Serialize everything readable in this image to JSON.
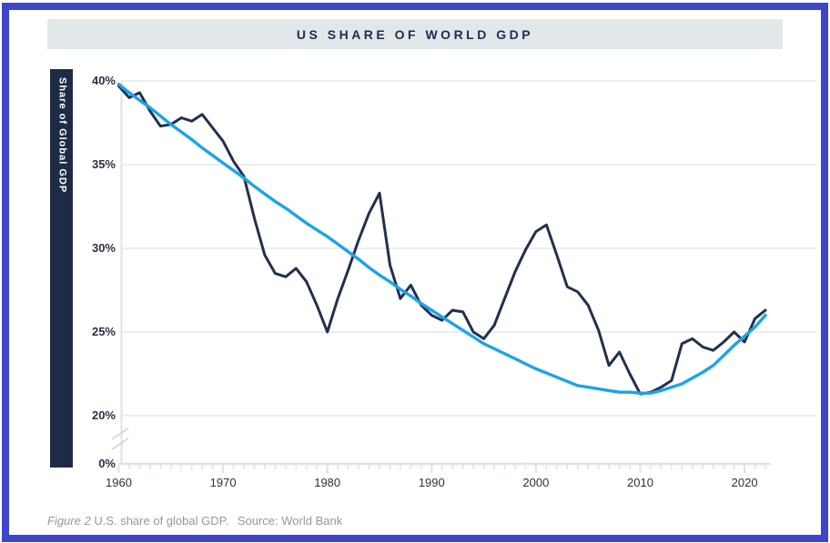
{
  "header": {
    "title": "US SHARE OF WORLD GDP"
  },
  "y_axis_label": "Share of Global GDP",
  "caption": {
    "figure_label": "Figure 2",
    "body": "U.S. share of global GDP.",
    "source": "Source: World Bank"
  },
  "colors": {
    "frame_border": "#3E46CB",
    "title_bar_bg": "#E2E8EA",
    "title_text": "#1F2C4F",
    "ylabel_bar_bg": "#1E2B47",
    "series_line": "#22304E",
    "trend_line": "#1CA3E8",
    "gridline": "#E3E9EB",
    "axis_line": "#DCE3E7",
    "tick_text": "#2A3240",
    "caption_text": "#9298A0"
  },
  "chart_data": {
    "type": "line",
    "title": "US SHARE OF WORLD GDP",
    "xlabel": "",
    "ylabel": "Share of Global GDP",
    "unit": "%",
    "x_range": [
      1960,
      2022
    ],
    "y_gridlines_percent": [
      40,
      35,
      30,
      25,
      20
    ],
    "y_tick_labels": [
      "40%",
      "35%",
      "30%",
      "25%",
      "20%",
      "0%"
    ],
    "y_axis_break": true,
    "x_tick_labels": [
      "1960",
      "1970",
      "1980",
      "1990",
      "2000",
      "2010",
      "2020"
    ],
    "x_decade_ticks": [
      1960,
      1970,
      1980,
      1990,
      2000,
      2010,
      2020
    ],
    "legend": "none",
    "x": [
      1960,
      1961,
      1962,
      1963,
      1964,
      1965,
      1966,
      1967,
      1968,
      1969,
      1970,
      1971,
      1972,
      1973,
      1974,
      1975,
      1976,
      1977,
      1978,
      1979,
      1980,
      1981,
      1982,
      1983,
      1984,
      1985,
      1986,
      1987,
      1988,
      1989,
      1990,
      1991,
      1992,
      1993,
      1994,
      1995,
      1996,
      1997,
      1998,
      1999,
      2000,
      2001,
      2002,
      2003,
      2004,
      2005,
      2006,
      2007,
      2008,
      2009,
      2010,
      2011,
      2012,
      2013,
      2014,
      2015,
      2016,
      2017,
      2018,
      2019,
      2020,
      2021,
      2022
    ],
    "series": [
      {
        "name": "US share of world GDP",
        "style": "jagged",
        "values": [
          39.7,
          39.0,
          39.3,
          38.2,
          37.3,
          37.4,
          37.8,
          37.6,
          38.0,
          37.2,
          36.4,
          35.2,
          34.3,
          31.8,
          29.6,
          28.5,
          28.3,
          28.8,
          28.0,
          26.6,
          25.0,
          27.0,
          28.7,
          30.5,
          32.1,
          33.3,
          29.0,
          27.0,
          27.8,
          26.6,
          26.0,
          25.7,
          26.3,
          26.2,
          25.0,
          24.6,
          25.4,
          27.0,
          28.6,
          29.9,
          31.0,
          31.4,
          29.6,
          27.7,
          27.4,
          26.6,
          25.1,
          23.0,
          23.8,
          22.5,
          21.3,
          21.4,
          21.7,
          22.1,
          24.3,
          24.6,
          24.1,
          23.9,
          24.4,
          25.0,
          24.4,
          25.8,
          26.3
        ]
      },
      {
        "name": "Smoothed trend",
        "style": "smooth",
        "values": [
          39.8,
          39.3,
          38.85,
          38.4,
          37.9,
          37.4,
          36.95,
          36.5,
          36.0,
          35.55,
          35.1,
          34.65,
          34.2,
          33.7,
          33.25,
          32.8,
          32.4,
          31.95,
          31.5,
          31.1,
          30.7,
          30.25,
          29.8,
          29.35,
          28.85,
          28.4,
          28.0,
          27.55,
          27.15,
          26.7,
          26.3,
          25.9,
          25.5,
          25.1,
          24.7,
          24.3,
          24.0,
          23.7,
          23.4,
          23.1,
          22.8,
          22.55,
          22.3,
          22.05,
          21.8,
          21.7,
          21.6,
          21.5,
          21.4,
          21.4,
          21.35,
          21.35,
          21.5,
          21.7,
          21.9,
          22.25,
          22.6,
          23.0,
          23.6,
          24.2,
          24.75,
          25.3,
          26.0
        ]
      }
    ]
  }
}
